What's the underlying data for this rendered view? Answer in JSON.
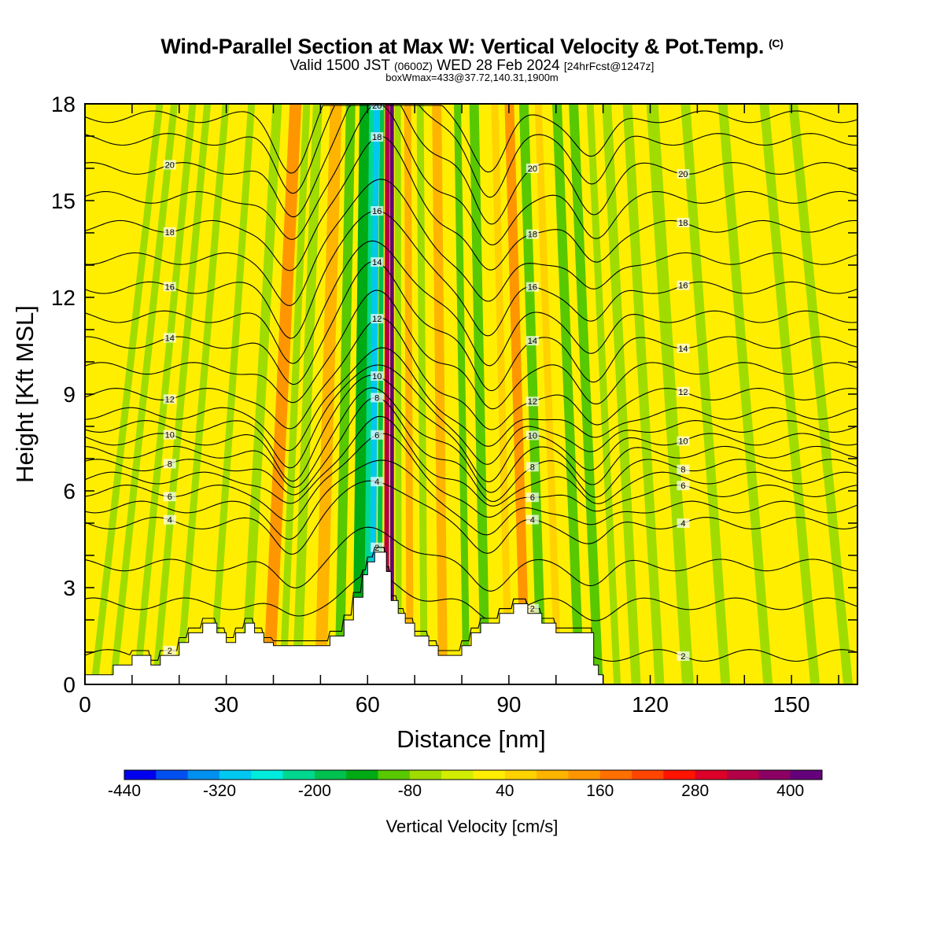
{
  "title": {
    "main": "Wind-Parallel Section at Max W: Vertical Velocity & Pot.Temp.",
    "copyright": "(C)",
    "valid_a": "Valid 1500 JST",
    "valid_b": "(0600Z)",
    "valid_c": "WED 28 Feb 2024",
    "valid_d": "[24hrFcst@1247z]",
    "box": "boxWmax=433@37.72,140.31,1900m"
  },
  "chart_data": {
    "type": "heatmap",
    "xlabel": "Distance [nm]",
    "ylabel": "Height [Kft MSL]",
    "xlim": [
      0,
      164
    ],
    "ylim": [
      0,
      18
    ],
    "x_ticks": [
      0,
      30,
      60,
      90,
      120,
      150
    ],
    "y_ticks": [
      0,
      3,
      6,
      9,
      12,
      15,
      18
    ],
    "colorbar": {
      "label": "Vertical Velocity [cm/s]",
      "min": -440,
      "max": 440,
      "step": 40,
      "tick_labels": [
        "-440",
        "-320",
        "-200",
        "-80",
        "40",
        "160",
        "280",
        "400"
      ],
      "colors": [
        "#0000ee",
        "#0050f0",
        "#0090f0",
        "#00c8f0",
        "#00ecdc",
        "#00d890",
        "#00c050",
        "#00aa14",
        "#58c800",
        "#a0dc00",
        "#d2ee00",
        "#ffee00",
        "#ffd200",
        "#ffb400",
        "#ff9600",
        "#ff7000",
        "#ff4600",
        "#ff1400",
        "#dd0028",
        "#b40046",
        "#8c0064",
        "#64007a"
      ]
    },
    "background_value": 20,
    "w_bands": [
      {
        "x": 2,
        "w": 1.5,
        "v": -50
      },
      {
        "x": 6,
        "w": 1.5,
        "v": -60
      },
      {
        "x": 11,
        "w": 1.5,
        "v": -50
      },
      {
        "x": 15,
        "w": 1.5,
        "v": -70
      },
      {
        "x": 20,
        "w": 1.5,
        "v": -60
      },
      {
        "x": 27,
        "w": 1.5,
        "v": -70
      },
      {
        "x": 34,
        "w": 2,
        "v": -70
      },
      {
        "x": 39,
        "w": 2.5,
        "v": 150
      },
      {
        "x": 42,
        "w": 1.5,
        "v": -60
      },
      {
        "x": 45,
        "w": 2,
        "v": -80
      },
      {
        "x": 50,
        "w": 2.5,
        "v": 90
      },
      {
        "x": 54,
        "w": 2,
        "v": -110
      },
      {
        "x": 58,
        "w": 2.5,
        "v": -140
      },
      {
        "x": 59.8,
        "w": 1.2,
        "v": -240
      },
      {
        "x": 61,
        "w": 1.3,
        "v": -300
      },
      {
        "x": 62.5,
        "w": 1,
        "v": -200
      },
      {
        "x": 64,
        "w": 1,
        "v": 320
      },
      {
        "x": 65.2,
        "w": 0.8,
        "v": 433
      },
      {
        "x": 66.6,
        "w": 1.3,
        "v": -80
      },
      {
        "x": 69,
        "w": 1.5,
        "v": 90
      },
      {
        "x": 72,
        "w": 1.5,
        "v": -80
      },
      {
        "x": 76,
        "w": 2,
        "v": 80
      },
      {
        "x": 81,
        "w": 1.5,
        "v": -90
      },
      {
        "x": 85,
        "w": 2,
        "v": -110
      },
      {
        "x": 90,
        "w": 1.5,
        "v": 60
      },
      {
        "x": 93.5,
        "w": 2,
        "v": 120
      },
      {
        "x": 97,
        "w": 2,
        "v": -100
      },
      {
        "x": 100.5,
        "w": 1.5,
        "v": 70
      },
      {
        "x": 105,
        "w": 2,
        "v": -100
      },
      {
        "x": 109,
        "w": 2,
        "v": -90
      },
      {
        "x": 113,
        "w": 1.5,
        "v": -60
      },
      {
        "x": 117,
        "w": 2,
        "v": -70
      },
      {
        "x": 122,
        "w": 2,
        "v": -80
      },
      {
        "x": 128,
        "w": 2.5,
        "v": -70
      },
      {
        "x": 136,
        "w": 2,
        "v": -70
      },
      {
        "x": 145,
        "w": 2,
        "v": -60
      },
      {
        "x": 155,
        "w": 2,
        "v": -60
      },
      {
        "x": 162,
        "w": 2,
        "v": -50
      }
    ],
    "terrain": [
      [
        0,
        0.3
      ],
      [
        6,
        0.3
      ],
      [
        6,
        0.6
      ],
      [
        10,
        0.6
      ],
      [
        10,
        0.9
      ],
      [
        14,
        0.9
      ],
      [
        14,
        0.6
      ],
      [
        16,
        0.6
      ],
      [
        16,
        0.9
      ],
      [
        20,
        0.9
      ],
      [
        20,
        1.3
      ],
      [
        22,
        1.3
      ],
      [
        22,
        1.6
      ],
      [
        25,
        1.6
      ],
      [
        25,
        1.9
      ],
      [
        28,
        1.9
      ],
      [
        28,
        1.6
      ],
      [
        30,
        1.6
      ],
      [
        30,
        1.3
      ],
      [
        32,
        1.3
      ],
      [
        32,
        1.6
      ],
      [
        34,
        1.6
      ],
      [
        34,
        1.9
      ],
      [
        36,
        1.9
      ],
      [
        36,
        1.6
      ],
      [
        38,
        1.6
      ],
      [
        38,
        1.3
      ],
      [
        40,
        1.3
      ],
      [
        40,
        1.2
      ],
      [
        52,
        1.2
      ],
      [
        52,
        1.5
      ],
      [
        55,
        1.5
      ],
      [
        55,
        2.0
      ],
      [
        57,
        2.0
      ],
      [
        57,
        2.7
      ],
      [
        59,
        2.7
      ],
      [
        59,
        3.4
      ],
      [
        60,
        3.4
      ],
      [
        60,
        3.8
      ],
      [
        61.5,
        3.8
      ],
      [
        61.5,
        4.1
      ],
      [
        64,
        4.1
      ],
      [
        64,
        3.5
      ],
      [
        65,
        3.5
      ],
      [
        65,
        2.6
      ],
      [
        66.5,
        2.6
      ],
      [
        66.5,
        2.2
      ],
      [
        68,
        2.2
      ],
      [
        68,
        1.9
      ],
      [
        70,
        1.9
      ],
      [
        70,
        1.5
      ],
      [
        73,
        1.5
      ],
      [
        73,
        1.2
      ],
      [
        75,
        1.2
      ],
      [
        75,
        0.9
      ],
      [
        80,
        0.9
      ],
      [
        80,
        1.2
      ],
      [
        82,
        1.2
      ],
      [
        82,
        1.6
      ],
      [
        84,
        1.6
      ],
      [
        84,
        1.9
      ],
      [
        88,
        1.9
      ],
      [
        88,
        2.2
      ],
      [
        91,
        2.2
      ],
      [
        91,
        2.5
      ],
      [
        94,
        2.5
      ],
      [
        94,
        2.2
      ],
      [
        97,
        2.2
      ],
      [
        97,
        1.9
      ],
      [
        100,
        1.9
      ],
      [
        100,
        1.6
      ],
      [
        108,
        1.6
      ],
      [
        108,
        0.6
      ],
      [
        109,
        0.6
      ],
      [
        109,
        0.3
      ],
      [
        110,
        0.3
      ],
      [
        110,
        0
      ],
      [
        0,
        0
      ]
    ],
    "theta_contours": [
      {
        "base": 0.9,
        "uplift": 0.0,
        "label": "2"
      },
      {
        "base": 2.5,
        "uplift": 0.5,
        "label": ""
      },
      {
        "base": 3.7,
        "uplift": 0.7,
        "label": ""
      },
      {
        "base": 5.0,
        "uplift": 0.9,
        "label": "4"
      },
      {
        "base": 5.5,
        "uplift": 1.0,
        "label": ""
      },
      {
        "base": 6.0,
        "uplift": 1.1,
        "label": "6"
      },
      {
        "base": 6.4,
        "uplift": 1.1,
        "label": ""
      },
      {
        "base": 6.8,
        "uplift": 1.2,
        "label": "8"
      },
      {
        "base": 7.2,
        "uplift": 1.2,
        "label": ""
      },
      {
        "base": 7.6,
        "uplift": 1.3,
        "label": "10"
      },
      {
        "base": 8.0,
        "uplift": 1.3,
        "label": ""
      },
      {
        "base": 8.4,
        "uplift": 1.3,
        "label": ""
      },
      {
        "base": 9.0,
        "uplift": 1.4,
        "label": "12"
      },
      {
        "base": 9.8,
        "uplift": 1.4,
        "label": ""
      },
      {
        "base": 10.6,
        "uplift": 1.5,
        "label": "14"
      },
      {
        "base": 11.4,
        "uplift": 1.5,
        "label": ""
      },
      {
        "base": 12.3,
        "uplift": 1.6,
        "label": "16"
      },
      {
        "base": 13.2,
        "uplift": 1.6,
        "label": ""
      },
      {
        "base": 14.2,
        "uplift": 1.7,
        "label": "18"
      },
      {
        "base": 15.1,
        "uplift": 1.7,
        "label": ""
      },
      {
        "base": 16.0,
        "uplift": 1.8,
        "label": "20"
      },
      {
        "base": 16.9,
        "uplift": 1.8,
        "label": ""
      },
      {
        "base": 17.6,
        "uplift": 1.8,
        "label": ""
      }
    ]
  }
}
